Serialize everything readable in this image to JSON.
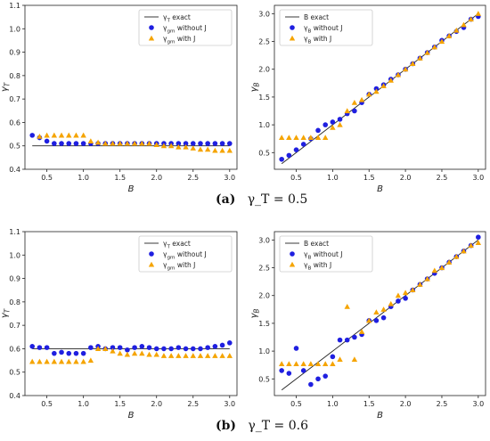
{
  "colors": {
    "exact": "#222222",
    "without_j": "#1f1fe0",
    "with_j": "#f5a400"
  },
  "captions": [
    {
      "label": "(a)",
      "text": "γ_T = 0.5"
    },
    {
      "label": "(b)",
      "text": "γ_T = 0.6"
    }
  ],
  "chart_data": [
    {
      "id": "a-left",
      "type": "scatter",
      "xlabel": "B",
      "ylabel": "γ_T",
      "xlim": [
        0.2,
        3.1
      ],
      "ylim": [
        0.4,
        1.1
      ],
      "xticks": [
        "0.5",
        "1.0",
        "1.5",
        "2.0",
        "2.5",
        "3.0"
      ],
      "yticks": [
        "0.4",
        "0.5",
        "0.6",
        "0.7",
        "0.8",
        "0.9",
        "1.0",
        "1.1"
      ],
      "legend_position": "top-right",
      "series": [
        {
          "name": "γ_T exact",
          "kind": "line",
          "x": [
            0.3,
            3.0
          ],
          "y": [
            0.5,
            0.5
          ]
        },
        {
          "name": "γ_gm without J",
          "kind": "circle",
          "x": [
            0.3,
            0.4,
            0.5,
            0.6,
            0.7,
            0.8,
            0.9,
            1.0,
            1.1,
            1.2,
            1.3,
            1.4,
            1.5,
            1.6,
            1.7,
            1.8,
            1.9,
            2.0,
            2.1,
            2.2,
            2.3,
            2.4,
            2.5,
            2.6,
            2.7,
            2.8,
            2.9,
            3.0
          ],
          "y": [
            0.545,
            0.535,
            0.52,
            0.51,
            0.51,
            0.51,
            0.51,
            0.51,
            0.51,
            0.51,
            0.51,
            0.51,
            0.51,
            0.51,
            0.51,
            0.51,
            0.51,
            0.51,
            0.51,
            0.51,
            0.51,
            0.51,
            0.51,
            0.51,
            0.51,
            0.51,
            0.51,
            0.51
          ]
        },
        {
          "name": "γ_gm with J",
          "kind": "triangle",
          "x": [
            0.4,
            0.5,
            0.6,
            0.7,
            0.8,
            0.9,
            1.0,
            1.1,
            1.2,
            1.3,
            1.4,
            1.5,
            1.6,
            1.7,
            1.8,
            1.9,
            2.0,
            2.1,
            2.2,
            2.3,
            2.4,
            2.5,
            2.6,
            2.7,
            2.8,
            2.9,
            3.0
          ],
          "y": [
            0.54,
            0.545,
            0.545,
            0.545,
            0.545,
            0.545,
            0.545,
            0.52,
            0.515,
            0.51,
            0.51,
            0.51,
            0.51,
            0.51,
            0.51,
            0.51,
            0.505,
            0.5,
            0.5,
            0.495,
            0.495,
            0.49,
            0.485,
            0.485,
            0.48,
            0.48,
            0.48
          ]
        }
      ]
    },
    {
      "id": "a-right",
      "type": "scatter",
      "xlabel": "B",
      "ylabel": "γ_B",
      "xlim": [
        0.2,
        3.1
      ],
      "ylim": [
        0.2,
        3.15
      ],
      "xticks": [
        "0.5",
        "1.0",
        "1.5",
        "2.0",
        "2.5",
        "3.0"
      ],
      "yticks": [
        "0.5",
        "1.0",
        "1.5",
        "2.0",
        "2.5",
        "3.0"
      ],
      "legend_position": "top-left",
      "series": [
        {
          "name": "B exact",
          "kind": "line",
          "x": [
            0.3,
            3.0
          ],
          "y": [
            0.3,
            3.0
          ]
        },
        {
          "name": "γ_B without J",
          "kind": "circle",
          "x": [
            0.3,
            0.4,
            0.5,
            0.6,
            0.7,
            0.8,
            0.9,
            1.0,
            1.1,
            1.2,
            1.3,
            1.4,
            1.5,
            1.6,
            1.7,
            1.8,
            1.9,
            2.0,
            2.1,
            2.2,
            2.3,
            2.4,
            2.5,
            2.6,
            2.7,
            2.8,
            2.9,
            3.0
          ],
          "y": [
            0.38,
            0.45,
            0.55,
            0.65,
            0.75,
            0.9,
            1.0,
            1.05,
            1.1,
            1.2,
            1.25,
            1.4,
            1.55,
            1.65,
            1.72,
            1.82,
            1.9,
            2.0,
            2.1,
            2.2,
            2.3,
            2.4,
            2.52,
            2.6,
            2.68,
            2.75,
            2.9,
            2.95
          ]
        },
        {
          "name": "γ_B with J",
          "kind": "triangle",
          "x": [
            0.3,
            0.4,
            0.5,
            0.6,
            0.7,
            0.8,
            0.9,
            1.0,
            1.1,
            1.2,
            1.3,
            1.4,
            1.5,
            1.6,
            1.7,
            1.8,
            1.9,
            2.0,
            2.1,
            2.2,
            2.3,
            2.4,
            2.5,
            2.6,
            2.7,
            2.8,
            2.9,
            3.0
          ],
          "y": [
            0.77,
            0.77,
            0.77,
            0.77,
            0.77,
            0.77,
            0.77,
            0.95,
            1.0,
            1.25,
            1.4,
            1.45,
            1.55,
            1.6,
            1.7,
            1.8,
            1.9,
            2.0,
            2.1,
            2.2,
            2.3,
            2.4,
            2.5,
            2.6,
            2.7,
            2.8,
            2.9,
            3.0
          ]
        }
      ]
    },
    {
      "id": "b-left",
      "type": "scatter",
      "xlabel": "B",
      "ylabel": "γ_T",
      "xlim": [
        0.2,
        3.1
      ],
      "ylim": [
        0.4,
        1.1
      ],
      "xticks": [
        "0.5",
        "1.0",
        "1.5",
        "2.0",
        "2.5",
        "3.0"
      ],
      "yticks": [
        "0.4",
        "0.5",
        "0.6",
        "0.7",
        "0.8",
        "0.9",
        "1.0",
        "1.1"
      ],
      "legend_position": "top-right",
      "series": [
        {
          "name": "γ_T exact",
          "kind": "line",
          "x": [
            0.3,
            3.0
          ],
          "y": [
            0.6,
            0.6
          ]
        },
        {
          "name": "γ_gm without J",
          "kind": "circle",
          "x": [
            0.3,
            0.4,
            0.5,
            0.6,
            0.7,
            0.8,
            0.9,
            1.0,
            1.1,
            1.2,
            1.3,
            1.4,
            1.5,
            1.6,
            1.7,
            1.8,
            1.9,
            2.0,
            2.1,
            2.2,
            2.3,
            2.4,
            2.5,
            2.6,
            2.7,
            2.8,
            2.9,
            3.0
          ],
          "y": [
            0.61,
            0.605,
            0.605,
            0.58,
            0.585,
            0.58,
            0.58,
            0.58,
            0.605,
            0.61,
            0.6,
            0.605,
            0.605,
            0.595,
            0.605,
            0.61,
            0.605,
            0.6,
            0.6,
            0.6,
            0.605,
            0.6,
            0.6,
            0.6,
            0.605,
            0.61,
            0.615,
            0.625
          ]
        },
        {
          "name": "γ_gm with J",
          "kind": "triangle",
          "x": [
            0.3,
            0.4,
            0.5,
            0.6,
            0.7,
            0.8,
            0.9,
            1.0,
            1.1,
            1.2,
            1.3,
            1.4,
            1.5,
            1.6,
            1.7,
            1.8,
            1.9,
            2.0,
            2.1,
            2.2,
            2.3,
            2.4,
            2.5,
            2.6,
            2.7,
            2.8,
            2.9,
            3.0
          ],
          "y": [
            0.545,
            0.545,
            0.545,
            0.545,
            0.545,
            0.545,
            0.545,
            0.545,
            0.55,
            0.6,
            0.6,
            0.59,
            0.58,
            0.575,
            0.58,
            0.58,
            0.575,
            0.575,
            0.57,
            0.57,
            0.57,
            0.57,
            0.57,
            0.57,
            0.57,
            0.57,
            0.57,
            0.57
          ]
        }
      ]
    },
    {
      "id": "b-right",
      "type": "scatter",
      "xlabel": "B",
      "ylabel": "γ_B",
      "xlim": [
        0.2,
        3.1
      ],
      "ylim": [
        0.2,
        3.15
      ],
      "xticks": [
        "0.5",
        "1.0",
        "1.5",
        "2.0",
        "2.5",
        "3.0"
      ],
      "yticks": [
        "0.5",
        "1.0",
        "1.5",
        "2.0",
        "2.5",
        "3.0"
      ],
      "legend_position": "top-left",
      "series": [
        {
          "name": "B exact",
          "kind": "line",
          "x": [
            0.3,
            3.0
          ],
          "y": [
            0.3,
            3.0
          ]
        },
        {
          "name": "γ_B without J",
          "kind": "circle",
          "x": [
            0.3,
            0.4,
            0.5,
            0.6,
            0.7,
            0.8,
            0.9,
            1.0,
            1.1,
            1.2,
            1.3,
            1.4,
            1.5,
            1.6,
            1.7,
            1.8,
            1.9,
            2.0,
            2.1,
            2.2,
            2.3,
            2.4,
            2.5,
            2.6,
            2.7,
            2.8,
            2.9,
            3.0
          ],
          "y": [
            0.65,
            0.6,
            1.05,
            0.65,
            0.4,
            0.5,
            0.55,
            0.9,
            1.2,
            1.2,
            1.25,
            1.3,
            1.55,
            1.55,
            1.6,
            1.8,
            1.9,
            1.95,
            2.1,
            2.2,
            2.3,
            2.4,
            2.5,
            2.6,
            2.7,
            2.8,
            2.9,
            3.05
          ]
        },
        {
          "name": "γ_B with J",
          "kind": "triangle",
          "x": [
            0.3,
            0.4,
            0.5,
            0.6,
            0.7,
            0.8,
            0.9,
            1.0,
            1.1,
            1.2,
            1.3,
            1.4,
            1.5,
            1.6,
            1.7,
            1.8,
            1.9,
            2.0,
            2.1,
            2.2,
            2.3,
            2.4,
            2.5,
            2.6,
            2.7,
            2.8,
            2.9,
            3.0
          ],
          "y": [
            0.77,
            0.77,
            0.77,
            0.77,
            0.77,
            0.77,
            0.77,
            0.77,
            0.85,
            1.8,
            0.85,
            1.35,
            1.55,
            1.7,
            1.75,
            1.85,
            2.0,
            2.05,
            2.1,
            2.2,
            2.3,
            2.45,
            2.5,
            2.6,
            2.7,
            2.8,
            2.9,
            2.95
          ]
        }
      ]
    }
  ]
}
